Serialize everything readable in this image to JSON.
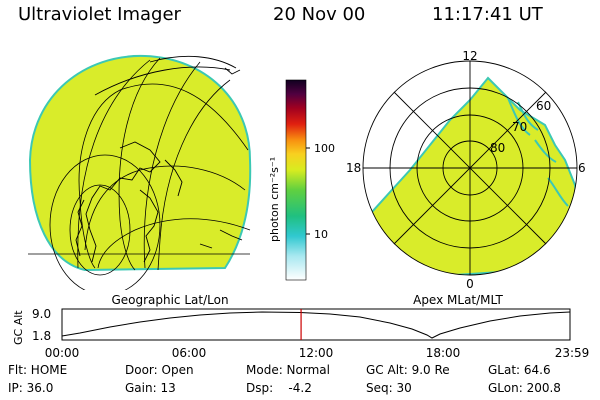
{
  "header": {
    "title": "Ultraviolet Imager",
    "date": "20 Nov 00",
    "time": "11:17:41 UT"
  },
  "colorbar": {
    "label": "photon cm⁻²s⁻¹",
    "ticks": [
      "100",
      "10"
    ]
  },
  "geo_panel": {
    "label": "Geographic Lat/Lon"
  },
  "polar_panel": {
    "label": "Apex MLat/MLT",
    "mlt_labels": {
      "top": "12",
      "left": "18",
      "right": "6",
      "bottom": "0"
    },
    "lat_labels": [
      "60",
      "70",
      "80"
    ]
  },
  "alt_plot": {
    "axis_label": "GC Alt",
    "y_ticks": [
      "9.0",
      "1.8"
    ],
    "x_ticks": [
      "00:00",
      "06:00",
      "12:00",
      "18:00",
      "23:59"
    ],
    "current_marker_hours": 11.295
  },
  "info": {
    "row1": {
      "flt": "Flt: HOME",
      "door": "Door: Open",
      "mode": "Mode: Normal",
      "gcalt": "GC Alt: 9.0 Re",
      "glat": "GLat:  64.6"
    },
    "row2": {
      "ip": "IP: 36.0",
      "gain": "Gain: 13",
      "dsp": "Dsp:    -4.2",
      "seq": "Seq: 30",
      "glon": "GLon: 200.8"
    }
  },
  "colors": {
    "image_fill": "#d9ec2a",
    "image_edge": "#3cc8b4",
    "marker": "#cc0000"
  }
}
